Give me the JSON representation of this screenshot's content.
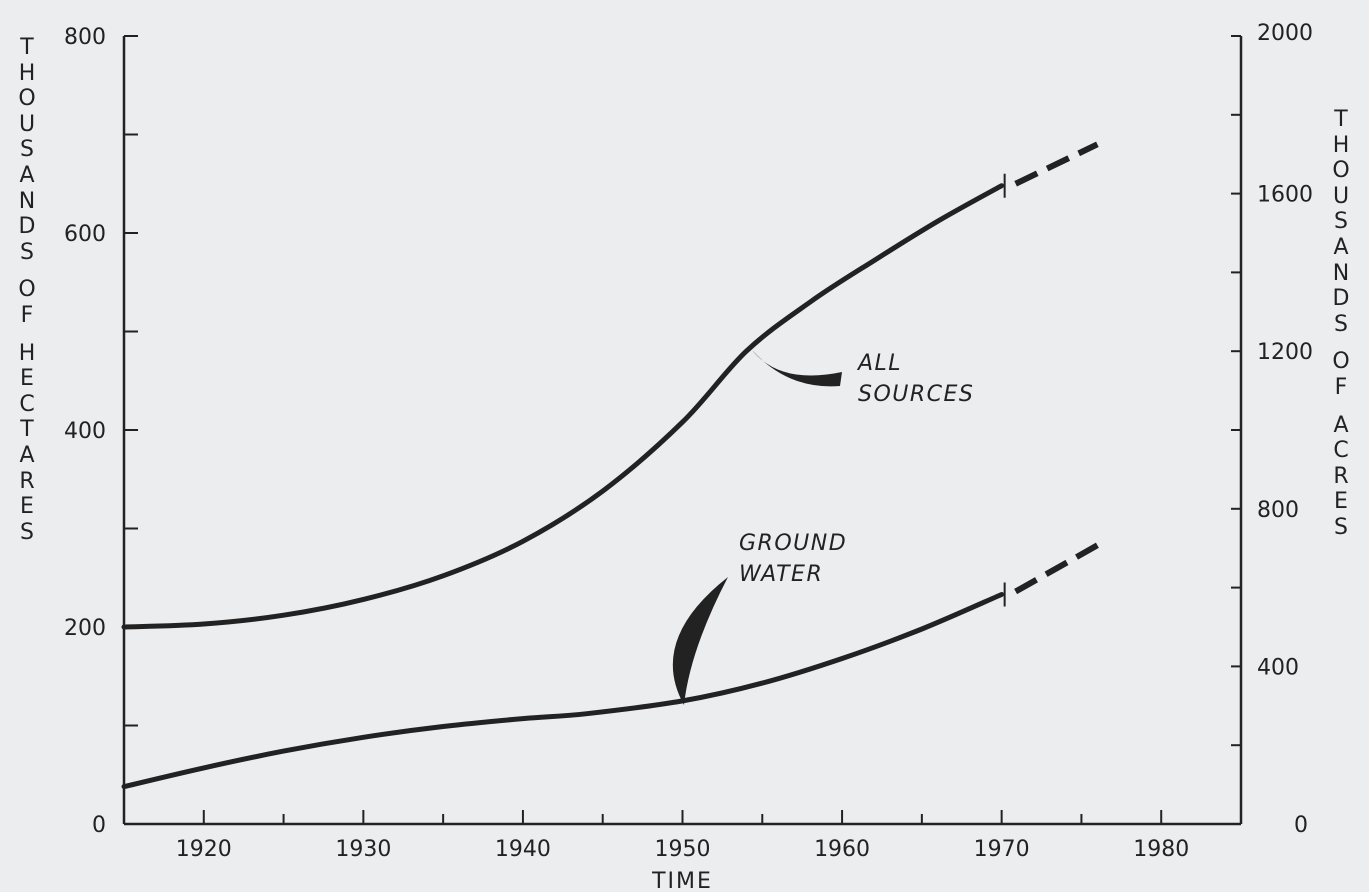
{
  "chart_data": {
    "type": "line",
    "title": "",
    "xlabel": "TIME",
    "ylabel_left": "THOUSANDS OF HECTARES",
    "ylabel_right": "THOUSANDS OF ACRES",
    "xlim": [
      1915,
      1985
    ],
    "ylim_left": [
      0,
      800
    ],
    "ylim_right": [
      0,
      2000
    ],
    "x_ticks": [
      1920,
      1930,
      1940,
      1950,
      1960,
      1970,
      1980
    ],
    "x_tick_labels": [
      "1920",
      "1930",
      "1940",
      "1950",
      "1960",
      "1970",
      "1980"
    ],
    "y_ticks_left": [
      0,
      100,
      200,
      300,
      400,
      500,
      600,
      700,
      800
    ],
    "y_tick_labels_left": {
      "0": "0",
      "200": "200",
      "400": "400",
      "600": "600",
      "800": "800"
    },
    "y_ticks_right": [
      0,
      200,
      400,
      600,
      800,
      1000,
      1200,
      1400,
      1600,
      1800,
      2000
    ],
    "y_tick_labels_right": {
      "0": "0",
      "400": "400",
      "800": "800",
      "1200": "1200",
      "1600": "1600",
      "2000": "2000"
    },
    "grid": false,
    "legend": "none",
    "series": [
      {
        "name": "ALL SOURCES",
        "label_lines": [
          "ALL",
          "SOURCES"
        ],
        "x": [
          1915,
          1920,
          1925,
          1930,
          1935,
          1940,
          1945,
          1950,
          1954,
          1958,
          1962,
          1966,
          1970
        ],
        "y": [
          200,
          203,
          212,
          228,
          252,
          287,
          338,
          408,
          480,
          530,
          572,
          612,
          648
        ],
        "projection": {
          "x": [
            1970.5,
            1976
          ],
          "y": [
            650,
            690
          ]
        }
      },
      {
        "name": "GROUND WATER",
        "label_lines": [
          "GROUND",
          "WATER"
        ],
        "x": [
          1915,
          1920,
          1925,
          1930,
          1935,
          1940,
          1944,
          1950,
          1955,
          1960,
          1965,
          1970
        ],
        "y": [
          38,
          57,
          74,
          88,
          99,
          107,
          112,
          125,
          143,
          168,
          198,
          233
        ],
        "projection": {
          "x": [
            1970.5,
            1976
          ],
          "y": [
            236,
            283
          ]
        }
      }
    ]
  },
  "colors": {
    "line": "#222222",
    "background": "#ecedef"
  }
}
